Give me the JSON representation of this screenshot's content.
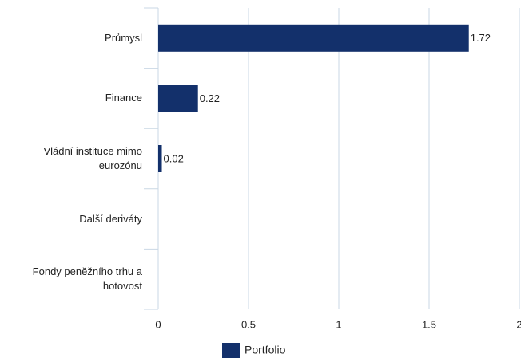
{
  "chart_data": {
    "type": "bar",
    "orientation": "horizontal",
    "categories": [
      "Průmysl",
      "Finance",
      "Vládní instituce mimo eurozónu",
      "Další deriváty",
      "Fondy peněžního trhu a hotovost"
    ],
    "series": [
      {
        "name": "Portfolio",
        "color": "#13306b",
        "values": [
          1.72,
          0.22,
          0.02,
          null,
          null
        ]
      }
    ],
    "xlim": [
      0,
      2
    ],
    "xticks": [
      0,
      0.5,
      1,
      1.5,
      2
    ],
    "grid": true,
    "legend": "bottom"
  }
}
